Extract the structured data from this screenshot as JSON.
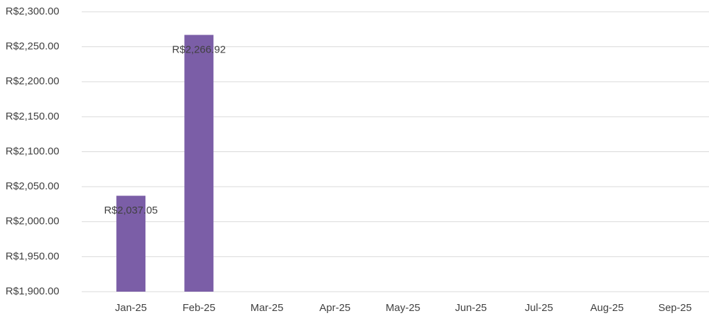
{
  "chart_data": {
    "type": "bar",
    "categories": [
      "Jan-25",
      "Feb-25",
      "Mar-25",
      "Apr-25",
      "May-25",
      "Jun-25",
      "Jul-25",
      "Aug-25",
      "Sep-25"
    ],
    "values": [
      2037.05,
      2266.92,
      null,
      null,
      null,
      null,
      null,
      null,
      null
    ],
    "value_labels": [
      "R$2,037.05",
      "R$2,266.92",
      null,
      null,
      null,
      null,
      null,
      null,
      null
    ],
    "color": "#7b5ea7",
    "ylim": [
      1900,
      2300
    ],
    "yticks": [
      {
        "value": 1900,
        "label": "R$1,900.00"
      },
      {
        "value": 1950,
        "label": "R$1,950.00"
      },
      {
        "value": 2000,
        "label": "R$2,000.00"
      },
      {
        "value": 2050,
        "label": "R$2,050.00"
      },
      {
        "value": 2100,
        "label": "R$2,100.00"
      },
      {
        "value": 2150,
        "label": "R$2,150.00"
      },
      {
        "value": 2200,
        "label": "R$2,200.00"
      },
      {
        "value": 2250,
        "label": "R$2,250.00"
      },
      {
        "value": 2300,
        "label": "R$2,300.00"
      }
    ],
    "grid": true
  }
}
